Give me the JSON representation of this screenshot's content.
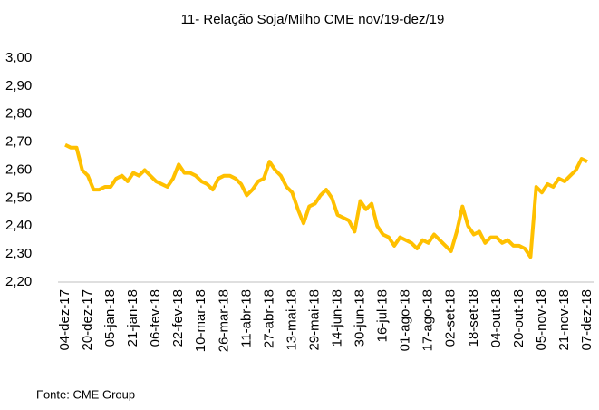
{
  "chart_data": {
    "type": "line",
    "title": "11- Relação Soja/Milho CME nov/19-dez/19",
    "categories": [
      "04-dez-17",
      null,
      null,
      null,
      "20-dez-17",
      null,
      null,
      null,
      "05-jan-18",
      null,
      null,
      null,
      "21-jan-18",
      null,
      null,
      null,
      "06-fev-18",
      null,
      null,
      null,
      "22-fev-18",
      null,
      null,
      null,
      "10-mar-18",
      null,
      null,
      null,
      "26-mar-18",
      null,
      null,
      null,
      "11-abr-18",
      null,
      null,
      null,
      "27-abr-18",
      null,
      null,
      null,
      "13-mai-18",
      null,
      null,
      null,
      "29-mai-18",
      null,
      null,
      null,
      "14-jun-18",
      null,
      null,
      null,
      "30-jun-18",
      null,
      null,
      null,
      "16-jul-18",
      null,
      null,
      null,
      "01-ago-18",
      null,
      null,
      null,
      "17-ago-18",
      null,
      null,
      null,
      "02-set-18",
      null,
      null,
      null,
      "18-set-18",
      null,
      null,
      null,
      "04-out-18",
      null,
      null,
      null,
      "20-out-18",
      null,
      null,
      null,
      "05-nov-18",
      null,
      null,
      null,
      "21-nov-18",
      null,
      null,
      null,
      "07-dez-18"
    ],
    "series": [
      {
        "color": "#ffc000",
        "values": [
          2.69,
          2.68,
          2.68,
          2.6,
          2.58,
          2.53,
          2.53,
          2.54,
          2.54,
          2.57,
          2.58,
          2.56,
          2.59,
          2.58,
          2.6,
          2.58,
          2.56,
          2.55,
          2.54,
          2.57,
          2.62,
          2.59,
          2.59,
          2.58,
          2.56,
          2.55,
          2.53,
          2.57,
          2.58,
          2.58,
          2.57,
          2.55,
          2.51,
          2.53,
          2.56,
          2.57,
          2.63,
          2.6,
          2.58,
          2.54,
          2.52,
          2.46,
          2.41,
          2.47,
          2.48,
          2.51,
          2.53,
          2.5,
          2.44,
          2.43,
          2.42,
          2.38,
          2.49,
          2.46,
          2.48,
          2.4,
          2.37,
          2.36,
          2.33,
          2.36,
          2.35,
          2.34,
          2.32,
          2.35,
          2.34,
          2.37,
          2.35,
          2.33,
          2.31,
          2.38,
          2.47,
          2.4,
          2.37,
          2.38,
          2.34,
          2.36,
          2.36,
          2.34,
          2.35,
          2.33,
          2.33,
          2.32,
          2.29,
          2.54,
          2.52,
          2.55,
          2.54,
          2.57,
          2.56,
          2.58,
          2.6,
          2.64,
          2.63
        ]
      }
    ],
    "ylim": [
      2.2,
      3.0
    ],
    "yticks": [
      {
        "value": 2.2,
        "label": "2,20"
      },
      {
        "value": 2.3,
        "label": "2,30"
      },
      {
        "value": 2.4,
        "label": "2,40"
      },
      {
        "value": 2.5,
        "label": "2,50"
      },
      {
        "value": 2.6,
        "label": "2,60"
      },
      {
        "value": 2.7,
        "label": "2,70"
      },
      {
        "value": 2.8,
        "label": "2,80"
      },
      {
        "value": 2.9,
        "label": "2,90"
      },
      {
        "value": 3.0,
        "label": "3,00"
      }
    ],
    "source": "Fonte: CME Group"
  }
}
